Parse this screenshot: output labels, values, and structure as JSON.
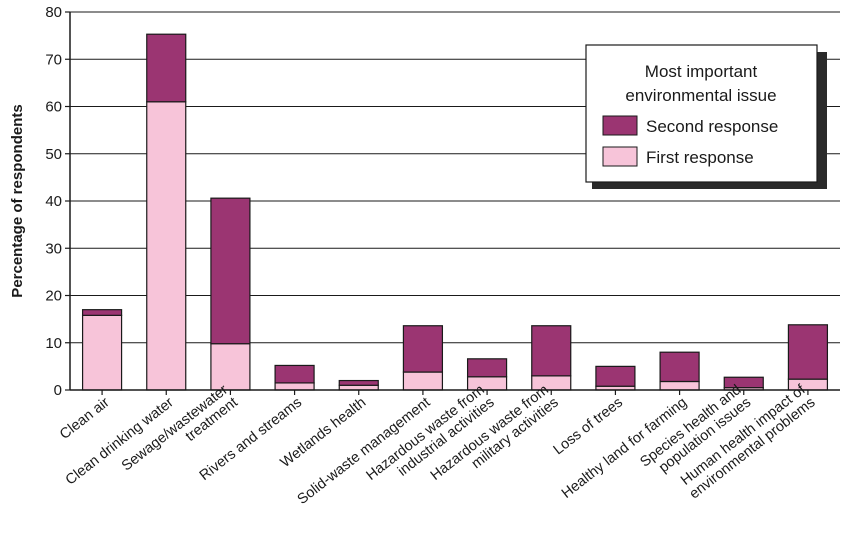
{
  "chart_data": {
    "type": "bar",
    "stacked": true,
    "ylabel": "Percentage of respondents",
    "ylim": [
      0,
      80
    ],
    "yticks": [
      0,
      10,
      20,
      30,
      40,
      50,
      60,
      70,
      80
    ],
    "grid": true,
    "legend": {
      "title_lines": [
        "Most important",
        "environmental issue"
      ],
      "position": "top-right"
    },
    "categories": [
      [
        "Clean air"
      ],
      [
        "Clean drinking water"
      ],
      [
        "Sewage/wastewater",
        "treatment"
      ],
      [
        "Rivers and streams"
      ],
      [
        "Wetlands health"
      ],
      [
        "Solid-waste management"
      ],
      [
        "Hazardous waste from",
        "industrial activities"
      ],
      [
        "Hazardous waste from",
        "military activities"
      ],
      [
        "Loss of trees"
      ],
      [
        "Healthy land for farming"
      ],
      [
        "Species health and",
        "population issues"
      ],
      [
        "Human health impact of",
        "environmental problems"
      ]
    ],
    "series": [
      {
        "name": "First response",
        "color": "#f7c4d9",
        "values": [
          15.8,
          61,
          9.8,
          1.5,
          1,
          3.8,
          2.8,
          3,
          0.8,
          1.8,
          0.5,
          2.3
        ]
      },
      {
        "name": "Second response",
        "color": "#9b3572",
        "values": [
          1.2,
          14.3,
          30.8,
          3.7,
          1,
          9.8,
          3.8,
          10.6,
          4.2,
          6.2,
          2.2,
          11.5
        ]
      }
    ]
  }
}
